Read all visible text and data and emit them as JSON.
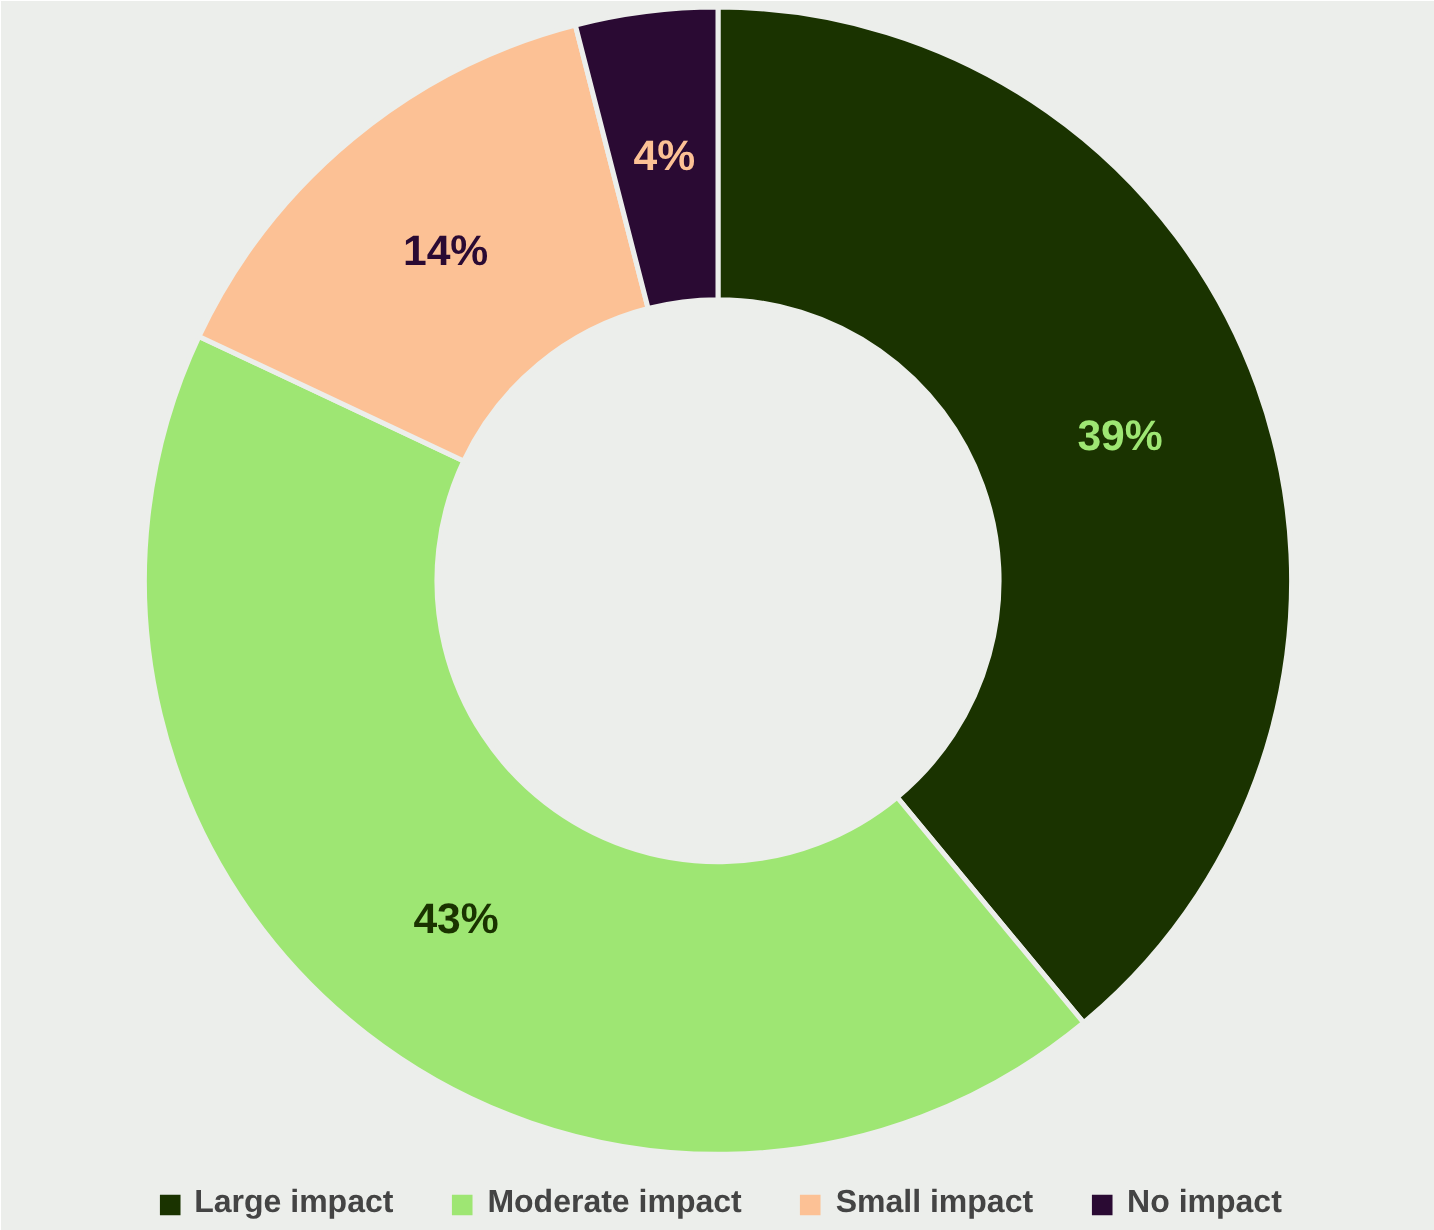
{
  "chart_data": {
    "type": "donut",
    "categories": [
      "Large impact",
      "Moderate impact",
      "Small impact",
      "No impact"
    ],
    "values": [
      39,
      43,
      14,
      4
    ],
    "value_labels": [
      "39%",
      "43%",
      "14%",
      "4%"
    ],
    "colors": [
      "#1a3300",
      "#9ee673",
      "#fcc195",
      "#2a0a33"
    ],
    "legend": "bottom"
  }
}
